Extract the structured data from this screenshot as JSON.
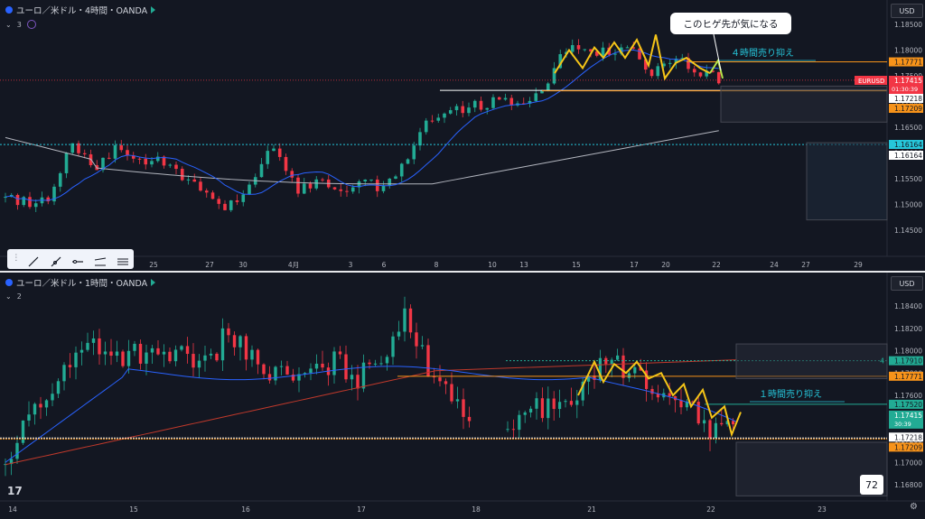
{
  "top": {
    "title": "ユーロ／米ドル・4時間・OANDA",
    "indicator_count": "3",
    "currency": "USD",
    "price_ticks": [
      "1.18500",
      "1.18000",
      "1.17500",
      "1.17000",
      "1.16500",
      "1.16000",
      "1.15500",
      "1.15000",
      "1.14500"
    ],
    "time_ticks": [
      "25",
      "27",
      "30",
      "4月",
      "3",
      "6",
      "8",
      "10",
      "13",
      "15",
      "17",
      "20",
      "22",
      "24",
      "27",
      "29"
    ],
    "labels": {
      "symbol_tag": "EURUSD",
      "last_price": "1.17415",
      "countdown": "01:30:39",
      "p1": "1.17771",
      "p2": "1.17218",
      "p3": "1.17209",
      "p4": "1.16164",
      "p5": "1.16164"
    },
    "annotation": "４時間売り抑え",
    "note": "このヒゲ先が気になる"
  },
  "bottom": {
    "title": "ユーロ／米ドル・1時間・OANDA",
    "indicator_count": "2",
    "currency": "USD",
    "price_ticks": [
      "1.18400",
      "1.18200",
      "1.18000",
      "1.17800",
      "1.17600",
      "1.17400",
      "1.17200",
      "1.17000",
      "1.16800"
    ],
    "time_ticks": [
      "14",
      "15",
      "16",
      "17",
      "18",
      "21",
      "22",
      "23"
    ],
    "labels": {
      "p1": "1.17910",
      "p2": "1.17771",
      "p3": "1.17520",
      "last_price": "1.17415",
      "countdown": "30:39",
      "p4": "1.17218",
      "p5": "1.17209",
      "edge_digit": "4"
    },
    "annotation": "１時間売り抑え",
    "badge": "72"
  },
  "colors": {
    "background": "#131722",
    "up": "#22ab94",
    "down": "#f23645",
    "ma_blue": "#2962ff",
    "ma_gray": "#b2b5be",
    "ma_red": "#c0392b",
    "orange": "#f7931a",
    "cyan": "#26c6da",
    "zigzag": "#f5c518",
    "zigzag_green": "#b6e34a"
  }
}
